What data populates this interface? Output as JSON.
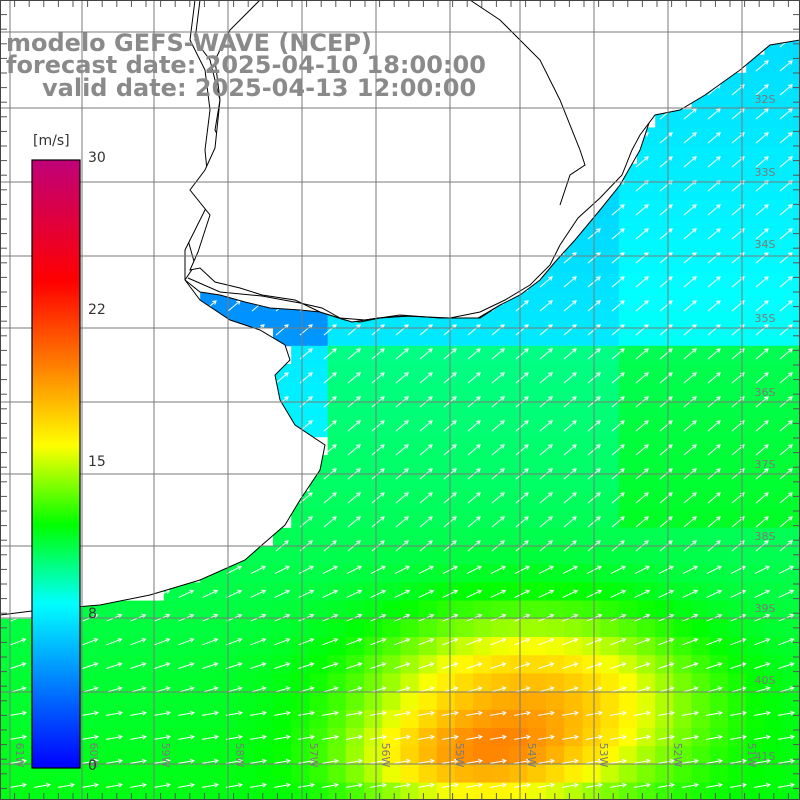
{
  "header": {
    "model": "modelo GEFS-WAVE (NCEP)",
    "forecast_date": "forecast date: 2025-04-10 18:00:00",
    "valid_date": "valid date: 2025-04-13 12:00:00"
  },
  "colorbar": {
    "unit": "[m/s]",
    "ticks": [
      "30",
      "22",
      "15",
      "8",
      "0"
    ],
    "tick_values": [
      30,
      22,
      15,
      8,
      0
    ],
    "min": 0,
    "max": 30,
    "colors": [
      "#0000ff",
      "#0080ff",
      "#00ffff",
      "#00ff00",
      "#ffff00",
      "#ff8000",
      "#ff0000",
      "#c0007a"
    ]
  },
  "map": {
    "lat_labels": [
      "32S",
      "33S",
      "34S",
      "35S",
      "36S",
      "37S",
      "38S",
      "39S",
      "40S",
      "41S"
    ],
    "lon_labels": [
      "61W",
      "60W",
      "59W",
      "58W",
      "57W",
      "56W",
      "55W",
      "54W",
      "53W",
      "52W",
      "51W"
    ],
    "land_color": "#ffffff",
    "coast_color": "#000000",
    "grid_color": "#7a7a7a",
    "arrow_color": "#ffffff"
  }
}
